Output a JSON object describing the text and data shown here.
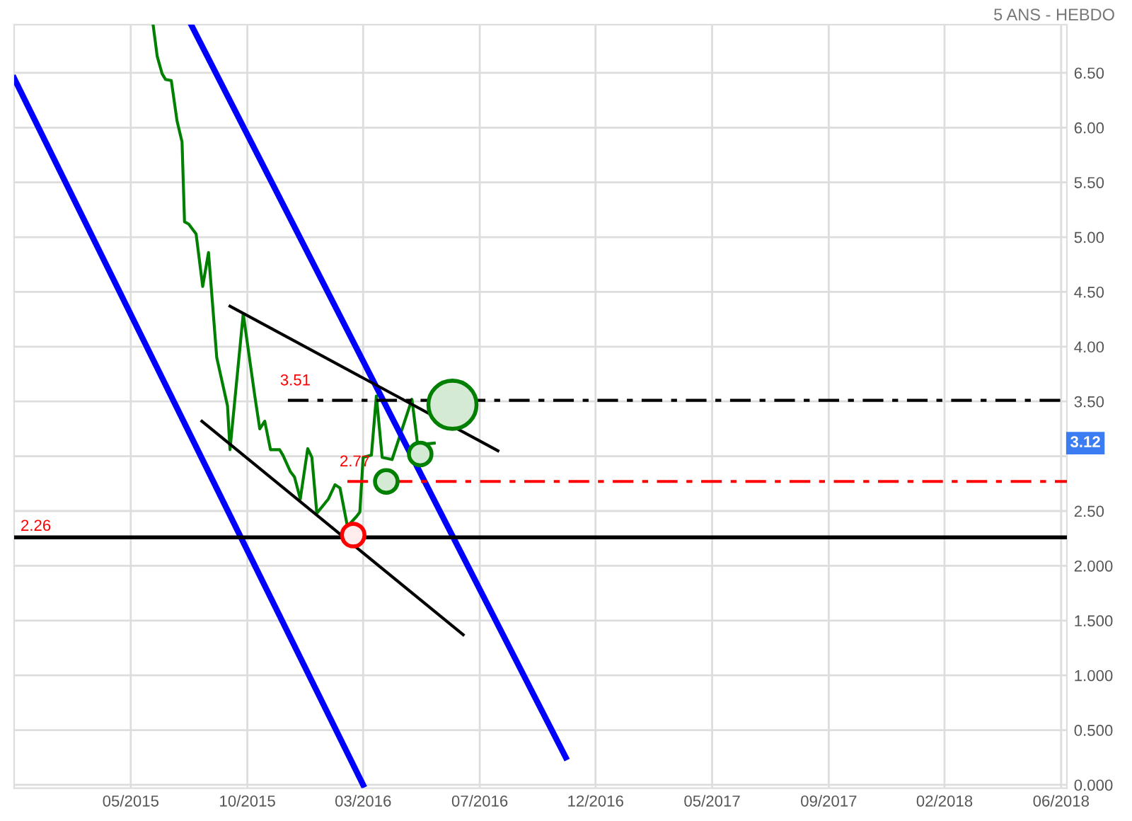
{
  "chart_data": {
    "type": "line",
    "title": "5 ANS - HEBDO",
    "xlim": [
      "2015-01-08",
      "2018-07-04"
    ],
    "ylim": [
      -0.03,
      6.94
    ],
    "xticks": [
      {
        "value": "2015-05-29",
        "label": "05/2015"
      },
      {
        "value": "2015-10-17",
        "label": "10/2015"
      },
      {
        "value": "2016-03-05",
        "label": "03/2016"
      },
      {
        "value": "2016-07-24",
        "label": "07/2016"
      },
      {
        "value": "2016-12-11",
        "label": "12/2016"
      },
      {
        "value": "2017-05-01",
        "label": "05/2017"
      },
      {
        "value": "2017-09-19",
        "label": "09/2017"
      },
      {
        "value": "2018-02-06",
        "label": "02/2018"
      },
      {
        "value": "2018-06-27",
        "label": "06/2018"
      }
    ],
    "yticks": [
      {
        "value": 0,
        "label": "0.000"
      },
      {
        "value": 0.5,
        "label": "0.500"
      },
      {
        "value": 1,
        "label": "1.000"
      },
      {
        "value": 1.5,
        "label": "1.500"
      },
      {
        "value": 2,
        "label": "2.000"
      },
      {
        "value": 2.5,
        "label": "2.50"
      },
      {
        "value": 3,
        "label": null
      },
      {
        "value": 3.5,
        "label": "3.50"
      },
      {
        "value": 4,
        "label": "4.00"
      },
      {
        "value": 4.5,
        "label": "4.50"
      },
      {
        "value": 5,
        "label": "5.00"
      },
      {
        "value": 5.5,
        "label": "5.50"
      },
      {
        "value": 6,
        "label": "6.00"
      },
      {
        "value": 6.5,
        "label": "6.50"
      }
    ],
    "grid": true,
    "series": [
      {
        "color": "#008000",
        "x": [
          "2015-06-25",
          "2015-06-30",
          "2015-07-06",
          "2015-07-10",
          "2015-07-17",
          "2015-07-24",
          "2015-07-30",
          "2015-08-02",
          "2015-08-07",
          "2015-08-16",
          "2015-08-24",
          "2015-08-31",
          "2015-09-10",
          "2015-09-23",
          "2015-09-26",
          "2015-10-12",
          "2015-10-26",
          "2015-11-01",
          "2015-11-07",
          "2015-11-14",
          "2015-11-25",
          "2015-11-29",
          "2015-12-08",
          "2015-12-13",
          "2015-12-20",
          "2015-12-29",
          "2016-01-03",
          "2016-01-09",
          "2016-01-23",
          "2016-01-31",
          "2016-02-06",
          "2016-02-15",
          "2016-02-26",
          "2016-03-01",
          "2016-03-05",
          "2016-03-15",
          "2016-03-21",
          "2016-03-28",
          "2016-04-09",
          "2016-05-03",
          "2016-05-10",
          "2016-05-17",
          "2016-05-30"
        ],
        "values": [
          6.94,
          6.65,
          6.49,
          6.44,
          6.43,
          6.06,
          5.87,
          5.14,
          5.12,
          5.03,
          4.55,
          4.86,
          3.9,
          3.46,
          3.06,
          4.3,
          3.55,
          3.25,
          3.32,
          3.06,
          3.06,
          3.01,
          2.86,
          2.81,
          2.61,
          3.07,
          2.99,
          2.48,
          2.61,
          2.74,
          2.71,
          2.36,
          2.45,
          2.49,
          2.99,
          3.01,
          3.55,
          2.99,
          2.97,
          3.52,
          3.1,
          3.11,
          3.12
        ]
      },
      {
        "color": "#0000ff",
        "x": [
          "2015-01-08",
          "2016-03-05"
        ],
        "values": [
          6.45,
          0.0
        ]
      },
      {
        "color": "#0000ff",
        "x": [
          "2015-08-10",
          "2016-11-05"
        ],
        "values": [
          6.94,
          0.25
        ]
      },
      {
        "color": "#000000",
        "x": [
          "2015-09-26",
          "2016-08-15"
        ],
        "values": [
          4.37,
          3.05
        ]
      },
      {
        "color": "#000000",
        "x": [
          "2015-08-23",
          "2016-07-04"
        ],
        "values": [
          3.32,
          1.37
        ]
      },
      {
        "color": "#000000",
        "line_style": "dashed",
        "x": [
          "2015-12-05",
          "2018-07-04"
        ],
        "values": [
          3.51,
          3.51
        ]
      },
      {
        "color": "#ff0000",
        "line_style": "dashed",
        "x": [
          "2016-02-15",
          "2018-07-04"
        ],
        "values": [
          2.77,
          2.77
        ]
      },
      {
        "type": "bubble",
        "x": [
          "2016-02-22",
          "2016-04-02",
          "2016-05-13",
          "2016-06-21"
        ],
        "values": [
          2.28,
          2.77,
          3.02,
          3.47
        ],
        "sizes": [
          0.22,
          0.22,
          0.22,
          1
        ],
        "colors": [
          "#ff0000",
          "#008000",
          "#008000",
          "#008000"
        ]
      }
    ],
    "ref_lines": [
      {
        "axis": "y",
        "value": 2.26,
        "label": "2.26",
        "color": "#000000"
      }
    ],
    "annotations": [
      {
        "text": "3.51",
        "x": "2015-12-05",
        "y": 3.51
      },
      {
        "text": "2.77",
        "x": "2016-02-15",
        "y": 2.77
      },
      "3.12"
    ]
  }
}
